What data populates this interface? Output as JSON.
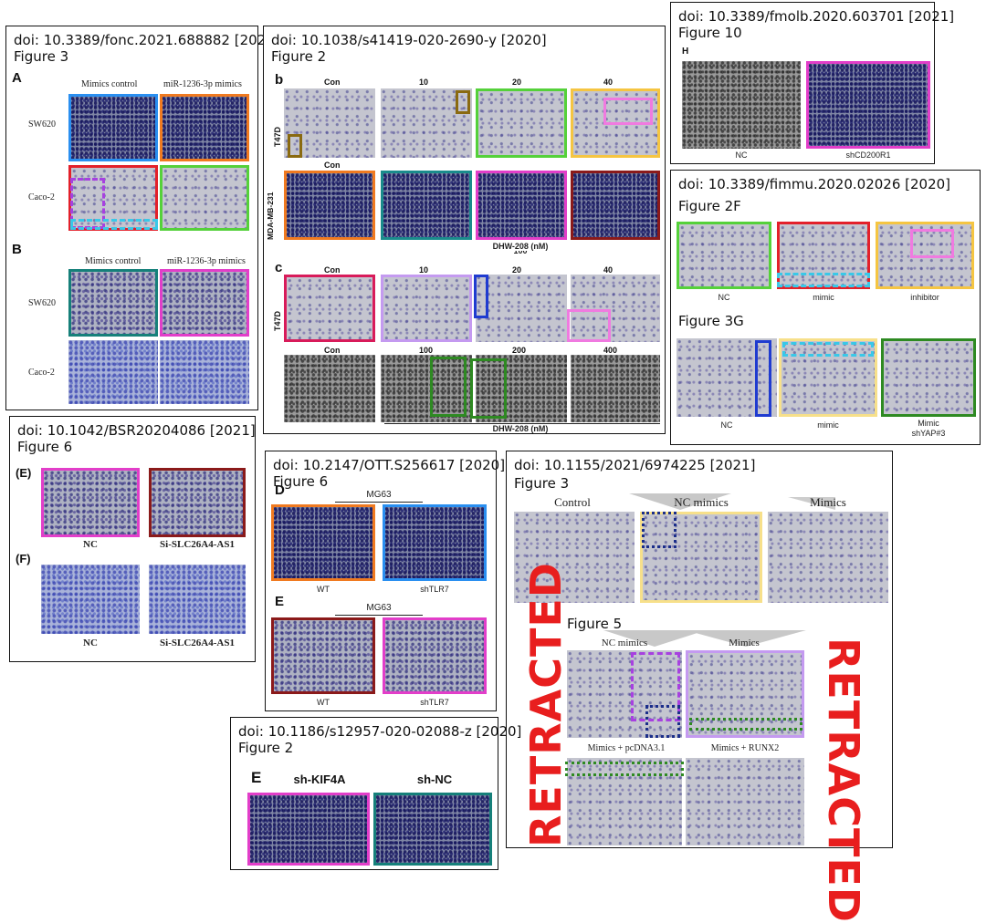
{
  "panels": {
    "p1": {
      "doi": "doi: 10.3389/fonc.2021.688882 [2021]",
      "figure": "Figure 3",
      "labelA": "A",
      "labelB": "B",
      "colA1": "Mimics control",
      "colA2": "miR-1236-3p mimics",
      "colB1": "Mimics control",
      "colB2": "miR-1236-3p mimics",
      "rowA1": "SW620",
      "rowA2": "Caco-2",
      "rowB1": "SW620",
      "rowB2": "Caco-2"
    },
    "p2": {
      "doi": "doi: 10.1038/s41419-020-2690-y [2020]",
      "figure": "Figure 2",
      "labelB": "b",
      "labelC": "c",
      "topCols": [
        "Con",
        "10",
        "20",
        "40"
      ],
      "bottomCols": [
        "Con",
        "100",
        "200",
        "400"
      ],
      "rowT": "T47D",
      "rowM": "MDA-MB-231",
      "dhw": "DHW-208 (nM)"
    },
    "p3": {
      "doi": "doi: 10.3389/fmolb.2020.603701 [2021]",
      "figure": "Figure 10",
      "labelH": "H",
      "cap1": "NC",
      "cap2": "shCD200R1"
    },
    "p4": {
      "doi": "doi: 10.3389/fimmu.2020.02026 [2020]",
      "fig2f": "Figure 2F",
      "fig3g": "Figure 3G",
      "f2caps": [
        "NC",
        "mimic",
        "inhibitor"
      ],
      "f3caps": [
        "NC",
        "mimic",
        "Mimic",
        "shYAP#3"
      ]
    },
    "p5": {
      "doi": "doi: 10.1042/BSR20204086 [2021]",
      "figure": "Figure 6",
      "labelE": "(E)",
      "labelF": "(F)",
      "capNC": "NC",
      "capSi": "Si-SLC26A4-AS1"
    },
    "p6": {
      "doi": "doi: 10.2147/OTT.S256617 [2020]",
      "figure": "Figure 6",
      "labelD": "D",
      "labelE": "E",
      "mg63": "MG63",
      "capWT": "WT",
      "capSh": "shTLR7"
    },
    "p7": {
      "doi": "doi: 10.1155/2021/6974225 [2021]",
      "figure3": "Figure 3",
      "figure5": "Figure 5",
      "f3cols": [
        "Control",
        "NC mimics",
        "Mimics"
      ],
      "f5cols": [
        "NC mimics",
        "Mimics"
      ],
      "f5row2": [
        "Mimics + pcDNA3.1",
        "Mimics + RUNX2"
      ],
      "retracted": "RETRACTED"
    },
    "p8": {
      "doi": "doi: 10.1186/s12957-020-02088-z [2020]",
      "figure": "Figure 2",
      "labelE": "E",
      "col1": "sh-KIF4A",
      "col2": "sh-NC"
    }
  },
  "colors": {
    "blue": "#2a8ff0",
    "orange": "#f07a20",
    "red": "#e3202a",
    "green": "#55d13a",
    "purple": "#a740e0",
    "cyan": "#39c8e8",
    "teal": "#16807a",
    "magenta": "#e23ec9",
    "olive": "#8a6a10",
    "pink": "#f07ae0",
    "lavender": "#c49af0",
    "navy": "#1f3bd0",
    "darkgreen": "#2e8a22",
    "crimson": "#d81b5a",
    "tealblue": "#1a8c8c",
    "darkred": "#8b1a1a",
    "yellow": "#f5c542",
    "lightyellow": "#f7e08a",
    "retracted": "#e81e1e"
  }
}
